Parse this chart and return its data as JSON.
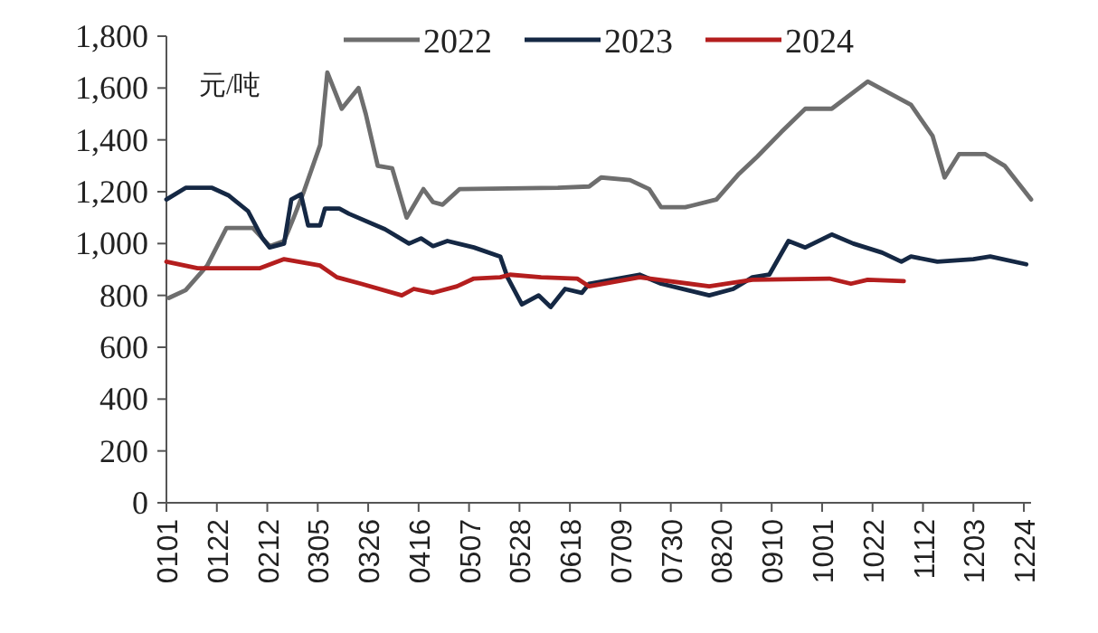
{
  "chart_data": {
    "type": "line",
    "ylabel": "元/吨",
    "legend": "top",
    "grid": false,
    "marker": "none",
    "line_style": "solid",
    "xlim": [
      "--01-01",
      "--12-27"
    ],
    "ylim": [
      0,
      1800
    ],
    "yticks": [
      {
        "value": 0,
        "label": "0"
      },
      {
        "value": 200,
        "label": "200"
      },
      {
        "value": 400,
        "label": "400"
      },
      {
        "value": 600,
        "label": "600"
      },
      {
        "value": 800,
        "label": "800"
      },
      {
        "value": 1000,
        "label": "1,000"
      },
      {
        "value": 1200,
        "label": "1,200"
      },
      {
        "value": 1400,
        "label": "1,400"
      },
      {
        "value": 1600,
        "label": "1,600"
      },
      {
        "value": 1800,
        "label": "1,800"
      }
    ],
    "xticks": [
      {
        "value": "--01-01",
        "label": "0101"
      },
      {
        "value": "--01-22",
        "label": "0122"
      },
      {
        "value": "--02-12",
        "label": "0212"
      },
      {
        "value": "--03-05",
        "label": "0305"
      },
      {
        "value": "--03-26",
        "label": "0326"
      },
      {
        "value": "--04-16",
        "label": "0416"
      },
      {
        "value": "--05-07",
        "label": "0507"
      },
      {
        "value": "--05-28",
        "label": "0528"
      },
      {
        "value": "--06-18",
        "label": "0618"
      },
      {
        "value": "--07-09",
        "label": "0709"
      },
      {
        "value": "--07-30",
        "label": "0730"
      },
      {
        "value": "--08-20",
        "label": "0820"
      },
      {
        "value": "--09-10",
        "label": "0910"
      },
      {
        "value": "--10-01",
        "label": "1001"
      },
      {
        "value": "--10-22",
        "label": "1022"
      },
      {
        "value": "--11-12",
        "label": "1112"
      },
      {
        "value": "--12-03",
        "label": "1203"
      },
      {
        "value": "--12-24",
        "label": "1224"
      }
    ],
    "series": [
      {
        "name": "2022",
        "color": "#6e6e6e",
        "x": [
          "--01-02",
          "--01-09",
          "--01-18",
          "--01-26",
          "--02-06",
          "--02-11",
          "--02-13",
          "--02-19",
          "--02-23",
          "--02-27",
          "--03-06",
          "--03-09",
          "--03-15",
          "--03-22",
          "--03-25",
          "--03-30",
          "--04-05",
          "--04-11",
          "--04-18",
          "--04-22",
          "--04-26",
          "--05-03",
          "--06-13",
          "--06-26",
          "--07-01",
          "--07-13",
          "--07-21",
          "--07-26",
          "--08-05",
          "--08-18",
          "--08-27",
          "--09-04",
          "--09-14",
          "--09-24",
          "--10-05",
          "--10-20",
          "--11-07",
          "--11-16",
          "--11-21",
          "--11-27",
          "--12-08",
          "--12-16",
          "--12-27"
        ],
        "values": [
          790,
          820,
          915,
          1060,
          1060,
          1010,
          990,
          1010,
          1100,
          1195,
          1380,
          1660,
          1520,
          1600,
          1500,
          1300,
          1290,
          1100,
          1210,
          1160,
          1150,
          1210,
          1215,
          1220,
          1255,
          1245,
          1210,
          1140,
          1140,
          1170,
          1265,
          1335,
          1430,
          1520,
          1520,
          1625,
          1535,
          1415,
          1255,
          1345,
          1345,
          1300,
          1170
        ]
      },
      {
        "name": "2023",
        "color": "#152844",
        "x": [
          "--01-01",
          "--01-09",
          "--01-20",
          "--01-27",
          "--02-04",
          "--02-10",
          "--02-13",
          "--02-19",
          "--02-22",
          "--02-26",
          "--03-01",
          "--03-06",
          "--03-08",
          "--03-14",
          "--03-18",
          "--04-02",
          "--04-12",
          "--04-17",
          "--04-22",
          "--04-28",
          "--05-09",
          "--05-20",
          "--05-23",
          "--05-29",
          "--06-05",
          "--06-10",
          "--06-16",
          "--06-23",
          "--06-26",
          "--07-17",
          "--07-26",
          "--08-15",
          "--08-25",
          "--09-02",
          "--09-09",
          "--09-17",
          "--09-24",
          "--10-05",
          "--10-14",
          "--10-26",
          "--11-03",
          "--11-07",
          "--11-18",
          "--12-03",
          "--12-10",
          "--12-25"
        ],
        "values": [
          1170,
          1215,
          1215,
          1185,
          1125,
          1020,
          985,
          1000,
          1170,
          1190,
          1070,
          1070,
          1135,
          1135,
          1115,
          1055,
          1000,
          1020,
          990,
          1010,
          985,
          950,
          870,
          765,
          800,
          755,
          825,
          810,
          845,
          880,
          845,
          800,
          825,
          870,
          880,
          1010,
          985,
          1035,
          1000,
          965,
          930,
          950,
          930,
          940,
          950,
          920
        ]
      },
      {
        "name": "2024",
        "color": "#b41e1e",
        "x": [
          "--01-01",
          "--01-14",
          "--02-09",
          "--02-19",
          "--03-06",
          "--03-13",
          "--03-23",
          "--04-09",
          "--04-14",
          "--04-22",
          "--05-02",
          "--05-09",
          "--05-20",
          "--05-24",
          "--06-06",
          "--06-21",
          "--06-26",
          "--07-17",
          "--08-15",
          "--09-02",
          "--10-04",
          "--10-13",
          "--10-20",
          "--11-04"
        ],
        "values": [
          930,
          905,
          905,
          940,
          915,
          870,
          845,
          800,
          825,
          810,
          835,
          865,
          870,
          880,
          870,
          865,
          835,
          870,
          835,
          860,
          865,
          845,
          860,
          855
        ]
      }
    ]
  }
}
